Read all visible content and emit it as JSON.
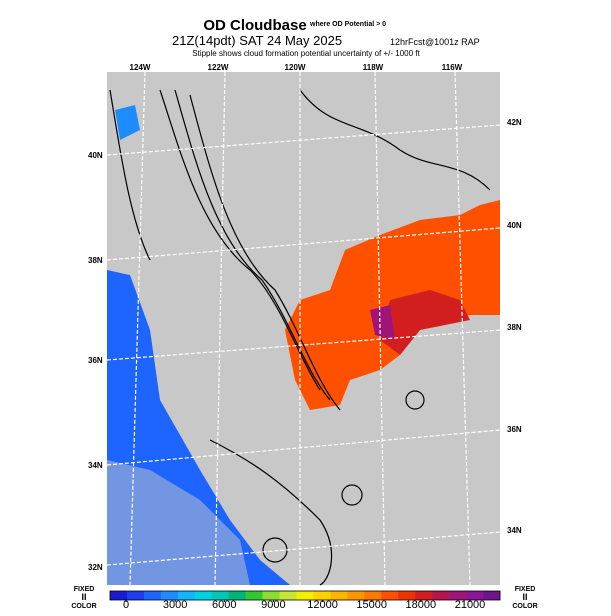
{
  "header": {
    "title": "OD Cloudbase",
    "title_note": "where OD Potential > 0",
    "time": "21Z(14pdt) SAT 24 May 2025",
    "forecast": "12hrFcst@1001z RAP",
    "subtitle": "Stipple shows cloud formation potential uncertainty of +/- 1000 ft"
  },
  "top_labels": [
    "124W",
    "122W",
    "120W",
    "118W",
    "116W"
  ],
  "left_labels": [
    "40N",
    "38N",
    "36N",
    "34N",
    "32N"
  ],
  "right_labels": [
    "42N",
    "40N",
    "38N",
    "36N",
    "34N"
  ],
  "colorbar": {
    "ticks": [
      0,
      3000,
      6000,
      9000,
      12000,
      15000,
      18000,
      21000
    ],
    "colors": [
      "#1a1ad0",
      "#1e3cf0",
      "#1e64ff",
      "#1e8cff",
      "#14b4ff",
      "#00d2e6",
      "#00c8b4",
      "#00b478",
      "#32c832",
      "#8cdc32",
      "#c8e632",
      "#f0f000",
      "#ffd200",
      "#ffb400",
      "#ff9600",
      "#ff7800",
      "#ff5000",
      "#f03200",
      "#d21e1e",
      "#b41450",
      "#a01478",
      "#8c1496",
      "#6e148c"
    ],
    "left_top": "FIXED",
    "left_mid": "II",
    "left_bottom": "COLOR",
    "right_top": "FIXED",
    "right_mid": "II",
    "right_bottom": "COLOR"
  }
}
